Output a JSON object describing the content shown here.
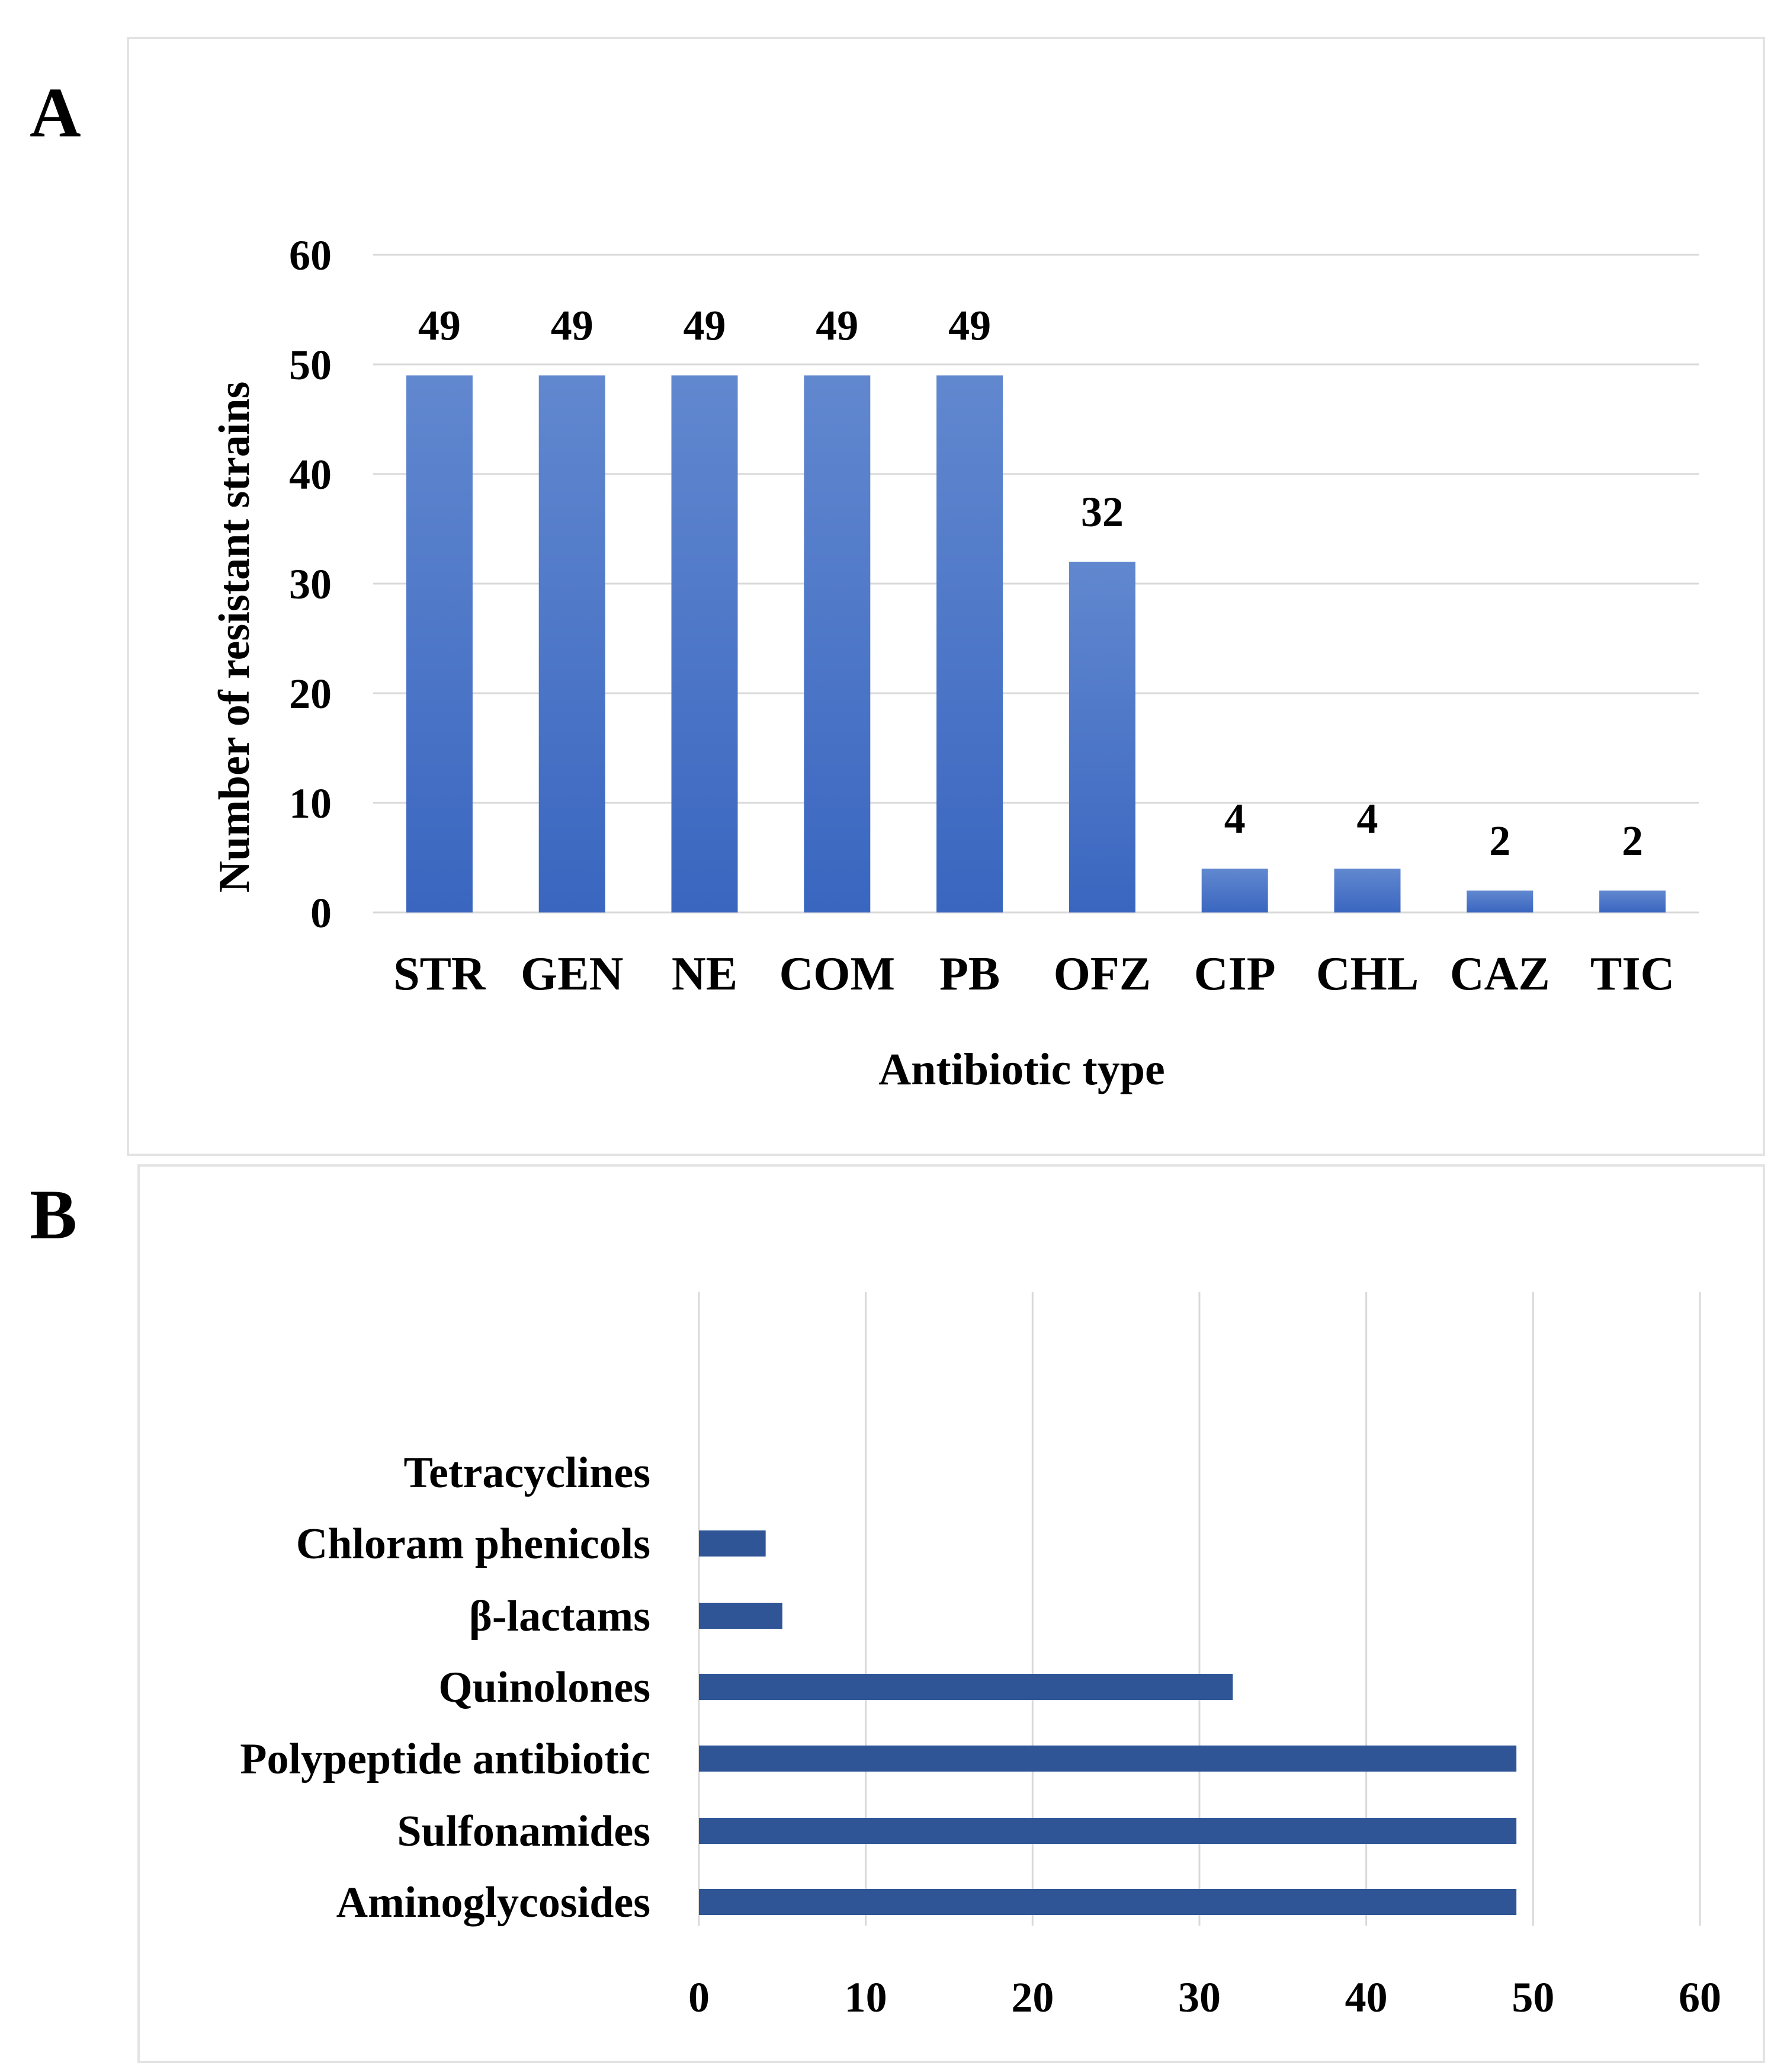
{
  "chart_data": [
    {
      "panel": "A",
      "type": "bar",
      "orientation": "vertical",
      "title": "",
      "xlabel": "Antibiotic type",
      "ylabel": "Number of resistant strains",
      "ylim": [
        0,
        60
      ],
      "yticks": [
        0,
        10,
        20,
        30,
        40,
        50,
        60
      ],
      "grid": true,
      "categories": [
        "STR",
        "GEN",
        "NE",
        "COM",
        "PB",
        "OFZ",
        "CIP",
        "CHL",
        "CAZ",
        "TIC"
      ],
      "values": [
        49,
        49,
        49,
        49,
        49,
        32,
        4,
        4,
        2,
        2
      ],
      "data_labels": [
        "49",
        "49",
        "49",
        "49",
        "49",
        "32",
        "4",
        "4",
        "2",
        "2"
      ],
      "bar_color": "#3a66c0",
      "bar_color_light": "#6188cf"
    },
    {
      "panel": "B",
      "type": "bar",
      "orientation": "horizontal",
      "title": "",
      "xlabel": "",
      "ylabel": "",
      "xlim": [
        0,
        60
      ],
      "xticks": [
        0,
        10,
        20,
        30,
        40,
        50,
        60
      ],
      "grid": true,
      "categories": [
        "Tetracyclines",
        "Chloram phenicols",
        "β-lactams",
        "Quinolones",
        "Polypeptide antibiotic",
        "Sulfonamides",
        "Aminoglycosides"
      ],
      "values": [
        0,
        4,
        5,
        32,
        49,
        49,
        49
      ],
      "bar_color": "#2f5597"
    }
  ],
  "colors": {
    "grid": "#d9d9d9",
    "frame": "#e3e3e3",
    "text": "#000000"
  }
}
